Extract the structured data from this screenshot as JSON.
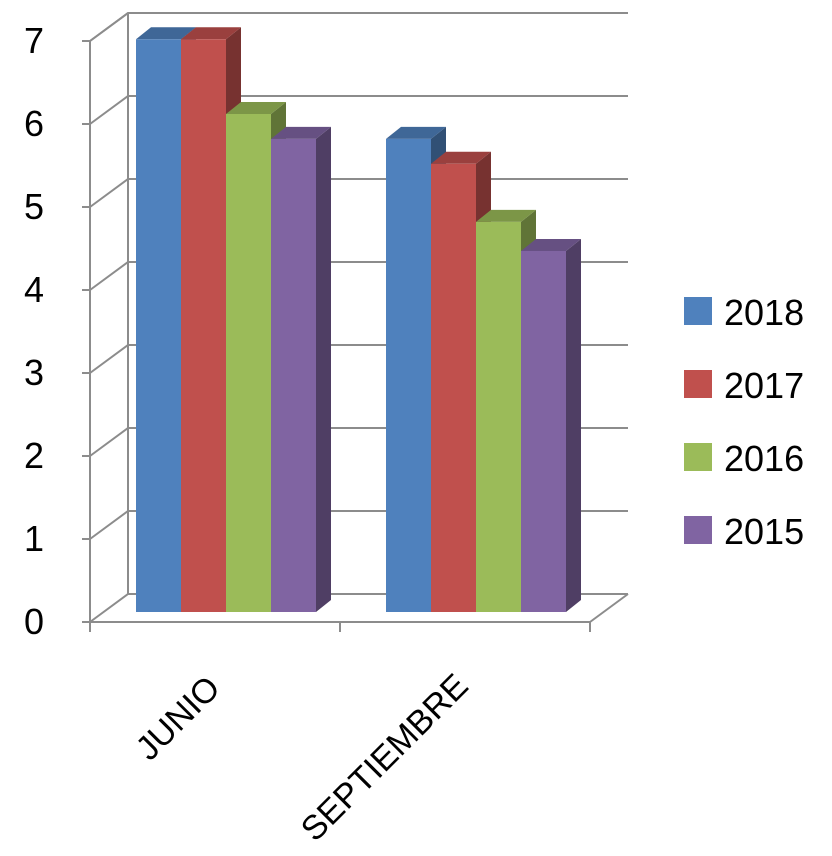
{
  "chart_data": {
    "type": "bar",
    "style": "3d-clustered-column",
    "categories": [
      "JUNIO",
      "SEPTIEMBRE"
    ],
    "series": [
      {
        "name": "2018",
        "values": [
          6.9,
          5.7
        ],
        "color": "#4f81bd"
      },
      {
        "name": "2017",
        "values": [
          6.9,
          5.4
        ],
        "color": "#c0504d"
      },
      {
        "name": "2016",
        "values": [
          6.0,
          4.7
        ],
        "color": "#9bbb59"
      },
      {
        "name": "2015",
        "values": [
          5.7,
          4.35
        ],
        "color": "#8064a2"
      }
    ],
    "yticks": [
      "0",
      "1",
      "2",
      "3",
      "4",
      "5",
      "6",
      "7"
    ],
    "ylim": [
      0,
      7
    ],
    "grid": true,
    "legend": "right",
    "title": "",
    "xlabel": "",
    "ylabel": ""
  }
}
